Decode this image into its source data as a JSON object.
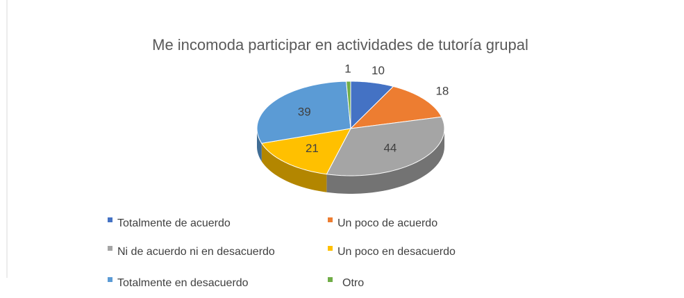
{
  "chart_data": {
    "type": "pie3d",
    "title": "Me incomoda participar en actividades de tutoría grupal",
    "categories": [
      "Totalmente de acuerdo",
      "Un poco de acuerdo",
      "Ni de acuerdo ni en desacuerdo",
      "Un poco en desacuerdo",
      "Totalmente en desacuerdo",
      "Otro"
    ],
    "values": [
      10,
      18,
      44,
      21,
      39,
      1
    ],
    "colors": [
      "#4472c4",
      "#ed7d31",
      "#a5a5a5",
      "#ffc000",
      "#5b9bd5",
      "#70ad47"
    ],
    "legend": "bottom"
  }
}
